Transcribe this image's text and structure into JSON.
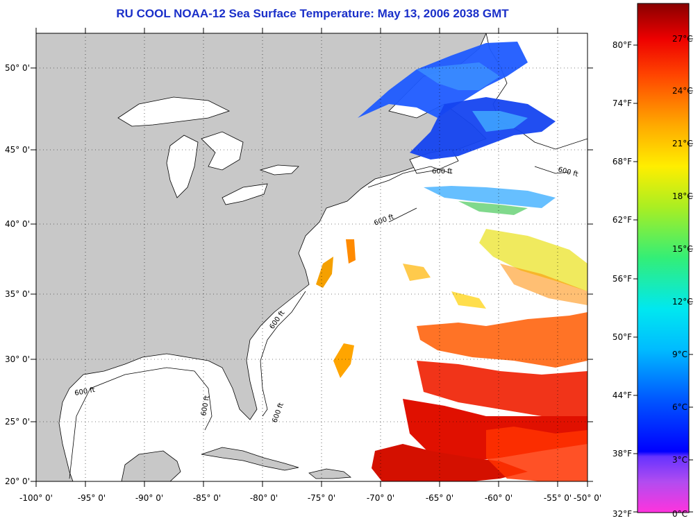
{
  "title": "RU COOL  NOAA-12  Sea Surface Temperature:  May 13, 2006 2038 GMT",
  "map": {
    "lat_labels": [
      "50° 0'",
      "45° 0'",
      "40° 0'",
      "35° 0'",
      "30° 0'",
      "25° 0'",
      "20° 0'"
    ],
    "lon_labels": [
      "-100° 0'",
      "-95° 0'",
      "-90° 0'",
      "-85° 0'",
      "-80° 0'",
      "-75° 0'",
      "-70° 0'",
      "-65° 0'",
      "-60° 0'",
      "-55° 0'",
      "-50° 0'"
    ],
    "isobath_labels": [
      "600 ft",
      "600 ft",
      "600 ft",
      "600 ft",
      "600 ft",
      "600 ft",
      "600 ft"
    ],
    "land_color": "#c8c8c8",
    "ocean_color": "#ffffff"
  },
  "colorbar": {
    "fahrenheit": [
      "80°F",
      "74°F",
      "68°F",
      "62°F",
      "56°F",
      "50°F",
      "44°F",
      "38°F",
      "32°F"
    ],
    "celsius": [
      "27°C",
      "24°C",
      "21°C",
      "18°C",
      "15°C",
      "12°C",
      "9°C",
      "6°C",
      "3°C",
      "0°C"
    ]
  }
}
